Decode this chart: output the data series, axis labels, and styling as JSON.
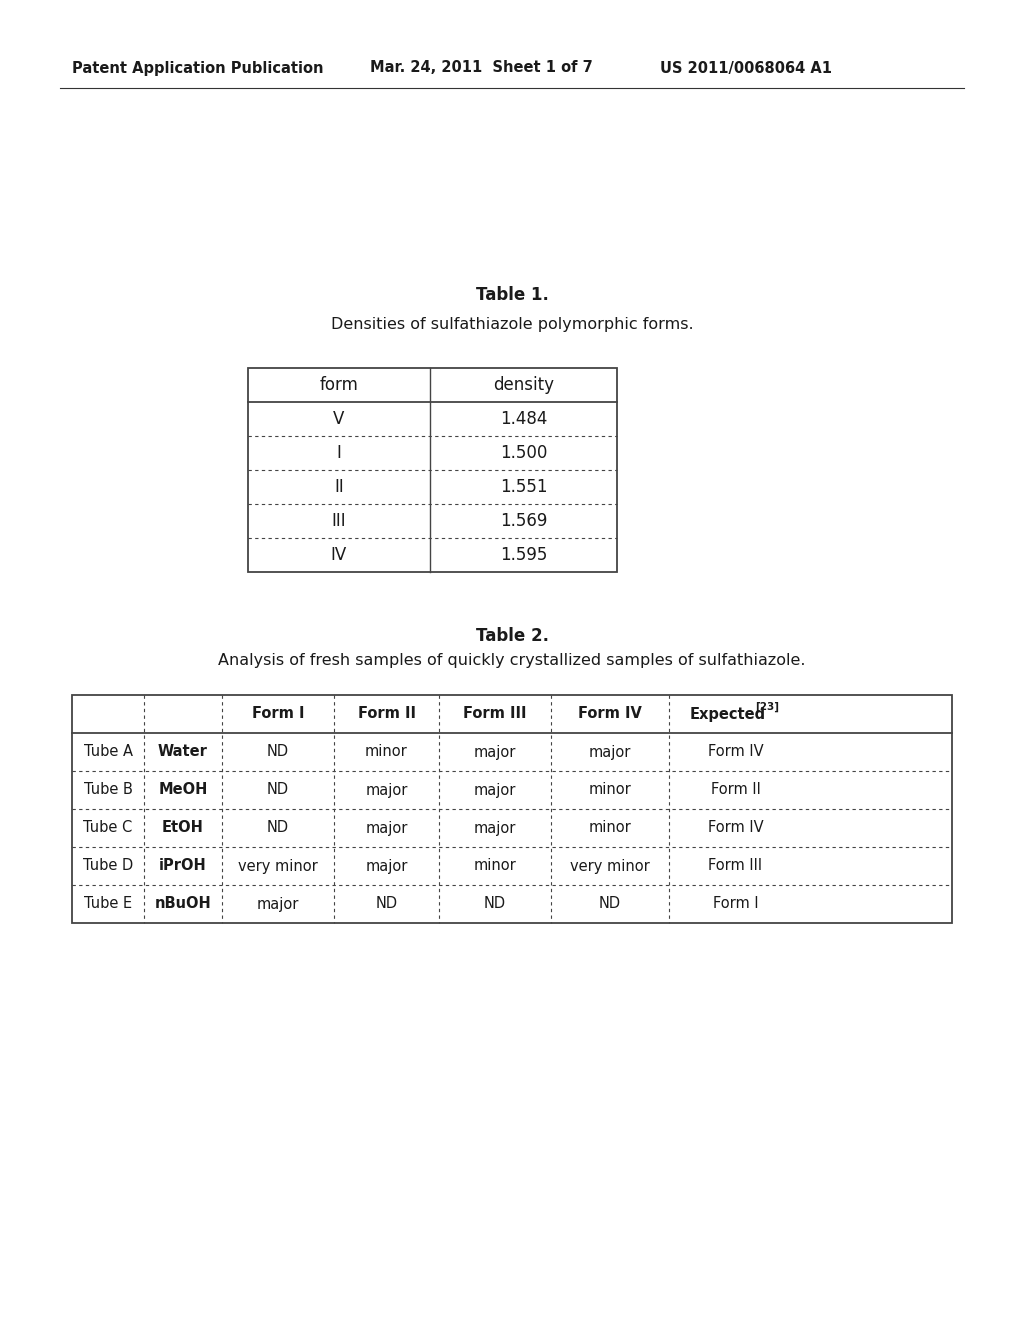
{
  "header_left": "Patent Application Publication",
  "header_mid": "Mar. 24, 2011  Sheet 1 of 7",
  "header_right": "US 2011/0068064 A1",
  "table1_title": "Table 1.",
  "table1_subtitle": "Densities of sulfathiazole polymorphic forms.",
  "table1_headers": [
    "form",
    "density"
  ],
  "table1_rows": [
    [
      "V",
      "1.484"
    ],
    [
      "I",
      "1.500"
    ],
    [
      "II",
      "1.551"
    ],
    [
      "III",
      "1.569"
    ],
    [
      "IV",
      "1.595"
    ]
  ],
  "table2_title": "Table 2.",
  "table2_subtitle": "Analysis of fresh samples of quickly crystallized samples of sulfathiazole.",
  "table2_col_headers": [
    "",
    "",
    "Form I",
    "Form II",
    "Form III",
    "Form IV",
    "Expected"
  ],
  "table2_rows": [
    [
      "Tube A",
      "Water",
      "ND",
      "minor",
      "major",
      "major",
      "Form IV"
    ],
    [
      "Tube B",
      "MeOH",
      "ND",
      "major",
      "major",
      "minor",
      "Form II"
    ],
    [
      "Tube C",
      "EtOH",
      "ND",
      "major",
      "major",
      "minor",
      "Form IV"
    ],
    [
      "Tube D",
      "iPrOH",
      "very minor",
      "major",
      "minor",
      "very minor",
      "Form III"
    ],
    [
      "Tube E",
      "nBuOH",
      "major",
      "ND",
      "ND",
      "ND",
      "Form I"
    ]
  ],
  "background_color": "#ffffff",
  "text_color": "#1a1a1a",
  "border_color": "#444444"
}
